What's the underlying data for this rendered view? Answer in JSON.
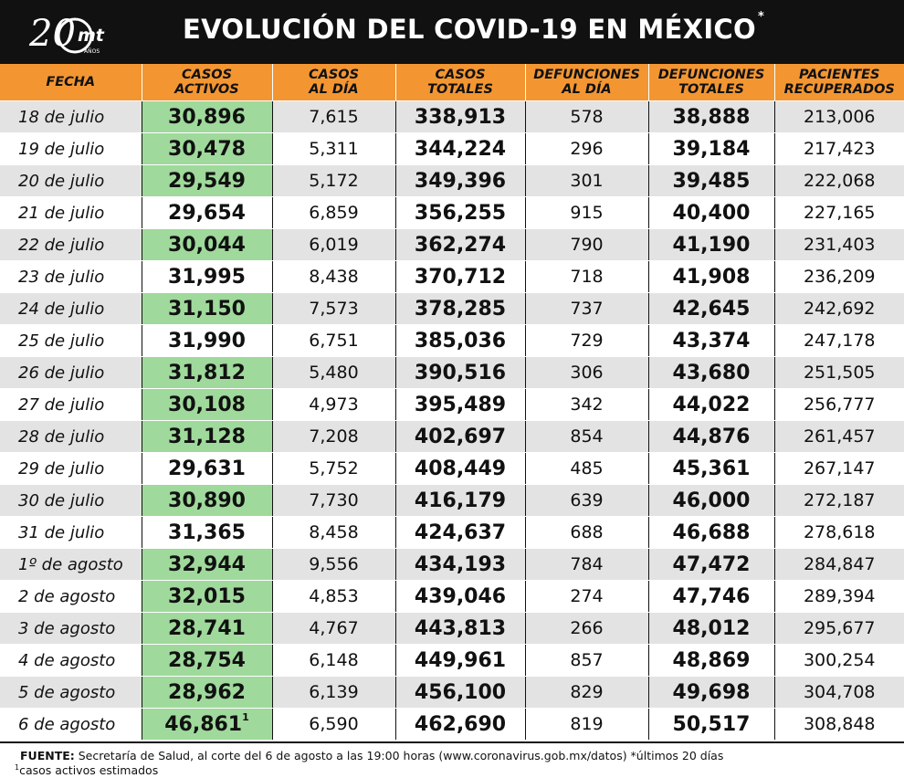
{
  "header": {
    "logo_number": "20",
    "logo_brand": "mt",
    "logo_sub": "AÑOS",
    "title": "EVOLUCIÓN DEL COVID-19 EN MÉXICO",
    "title_mark": "*"
  },
  "chart_data": {
    "type": "table",
    "columns": [
      [
        "FECHA"
      ],
      [
        "CASOS",
        "ACTIVOS"
      ],
      [
        "CASOS",
        "AL DÍA"
      ],
      [
        "CASOS",
        "TOTALES"
      ],
      [
        "DEFUNCIONES",
        "AL DÍA"
      ],
      [
        "DEFUNCIONES",
        "TOTALES"
      ],
      [
        "PACIENTES",
        "RECUPERADOS"
      ]
    ],
    "rows": [
      [
        "18 de julio",
        "30,896",
        "7,615",
        "338,913",
        "578",
        "38,888",
        "213,006"
      ],
      [
        "19 de julio",
        "30,478",
        "5,311",
        "344,224",
        "296",
        "39,184",
        "217,423"
      ],
      [
        "20 de julio",
        "29,549",
        "5,172",
        "349,396",
        "301",
        "39,485",
        "222,068"
      ],
      [
        "21 de julio",
        "29,654",
        "6,859",
        "356,255",
        "915",
        "40,400",
        "227,165"
      ],
      [
        "22 de julio",
        "30,044",
        "6,019",
        "362,274",
        "790",
        "41,190",
        "231,403"
      ],
      [
        "23 de julio",
        "31,995",
        "8,438",
        "370,712",
        "718",
        "41,908",
        "236,209"
      ],
      [
        "24 de julio",
        "31,150",
        "7,573",
        "378,285",
        "737",
        "42,645",
        "242,692"
      ],
      [
        "25 de julio",
        "31,990",
        "6,751",
        "385,036",
        "729",
        "43,374",
        "247,178"
      ],
      [
        "26 de julio",
        "31,812",
        "5,480",
        "390,516",
        "306",
        "43,680",
        "251,505"
      ],
      [
        "27 de julio",
        "30,108",
        "4,973",
        "395,489",
        "342",
        "44,022",
        "256,777"
      ],
      [
        "28 de julio",
        "31,128",
        "7,208",
        "402,697",
        "854",
        "44,876",
        "261,457"
      ],
      [
        "29 de julio",
        "29,631",
        "5,752",
        "408,449",
        "485",
        "45,361",
        "267,147"
      ],
      [
        "30 de julio",
        "30,890",
        "7,730",
        "416,179",
        "639",
        "46,000",
        "272,187"
      ],
      [
        "31 de julio",
        "31,365",
        "8,458",
        "424,637",
        "688",
        "46,688",
        "278,618"
      ],
      [
        "1º de agosto",
        "32,944",
        "9,556",
        "434,193",
        "784",
        "47,472",
        "284,847"
      ],
      [
        "2 de agosto",
        "32,015",
        "4,853",
        "439,046",
        "274",
        "47,746",
        "289,394"
      ],
      [
        "3 de agosto",
        "28,741",
        "4,767",
        "443,813",
        "266",
        "48,012",
        "295,677"
      ],
      [
        "4 de agosto",
        "28,754",
        "6,148",
        "449,961",
        "857",
        "48,869",
        "300,254"
      ],
      [
        "5 de agosto",
        "28,962",
        "6,139",
        "456,100",
        "829",
        "49,698",
        "304,708"
      ],
      [
        "6 de agosto",
        "46,861",
        "6,590",
        "462,690",
        "819",
        "50,517",
        "308,848"
      ]
    ],
    "active_highlight": [
      true,
      true,
      true,
      false,
      true,
      false,
      true,
      false,
      true,
      true,
      true,
      false,
      true,
      false,
      true,
      true,
      true,
      true,
      true,
      true
    ],
    "last_active_mark": "1",
    "highlight_color": "#9fd99b",
    "header_color": "#f39632"
  },
  "footer": {
    "source_label": "FUENTE:",
    "source_text": " Secretaría de Salud, al corte del 6 de agosto a las 19:00 horas (www.coronavirus.gob.mx/datos) *últimos 20 días",
    "note_mark": "1",
    "note_text": "casos activos estimados"
  }
}
